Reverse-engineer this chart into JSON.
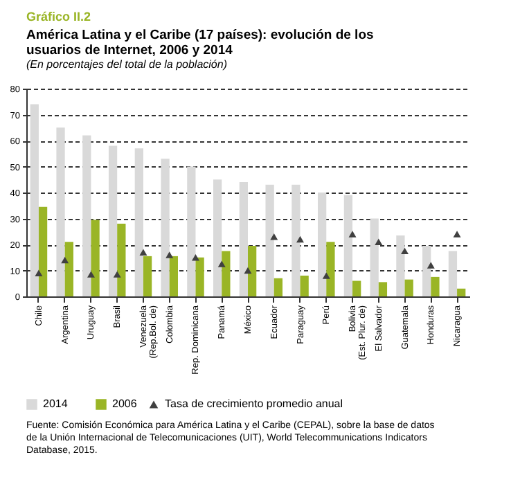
{
  "chart_data": {
    "type": "bar",
    "title": "América Latina y el Caribe (17 países): evolución de los usuarios de Internet, 2006 y 2014",
    "subtitle": "(En porcentajes del total de la población)",
    "categories": [
      "Chile",
      "Argentina",
      "Uruguay",
      "Brasil",
      "Venezuela (Rep.Bol. de)",
      "Colombia",
      "Rep. Dominicana",
      "Panamá",
      "México",
      "Ecuador",
      "Paraguay",
      "Perú",
      "Bolivia (Est. Plur. de)",
      "El Salvador",
      "Guatemala",
      "Honduras",
      "Nicaragua"
    ],
    "series": [
      {
        "name": "2014",
        "color": "#d9d9d9",
        "values": [
          74,
          65,
          62,
          58,
          57,
          53,
          50,
          45,
          44,
          43,
          43,
          40,
          39,
          30,
          23.5,
          19.5,
          17.5
        ]
      },
      {
        "name": "2006",
        "color": "#9ab526",
        "values": [
          34.5,
          21,
          29.5,
          28,
          15.5,
          15.5,
          15,
          17.5,
          19.5,
          7,
          8,
          21,
          6,
          5.5,
          6.5,
          7.5,
          3
        ]
      },
      {
        "name": "Tasa de crecimiento promedio anual",
        "type": "scatter",
        "marker": "triangle",
        "color": "#404040",
        "values": [
          9,
          14,
          8.5,
          8.5,
          17,
          16,
          15,
          12.5,
          10,
          23,
          22,
          8,
          24,
          21,
          17.5,
          12,
          24
        ]
      }
    ],
    "ylim": [
      0,
      80
    ],
    "yticks": [
      0,
      10,
      20,
      30,
      40,
      50,
      60,
      70,
      80
    ],
    "grid": "y",
    "legend": "bottom",
    "annotations": [
      "Gráfico II.2",
      "Fuente: Comisión Económica para América Latina y el Caribe (CEPAL), sobre la base de datos de la Unión Internacional de Telecomunicaciones (UIT), World Telecommunications Indicators Database, 2015."
    ]
  }
}
